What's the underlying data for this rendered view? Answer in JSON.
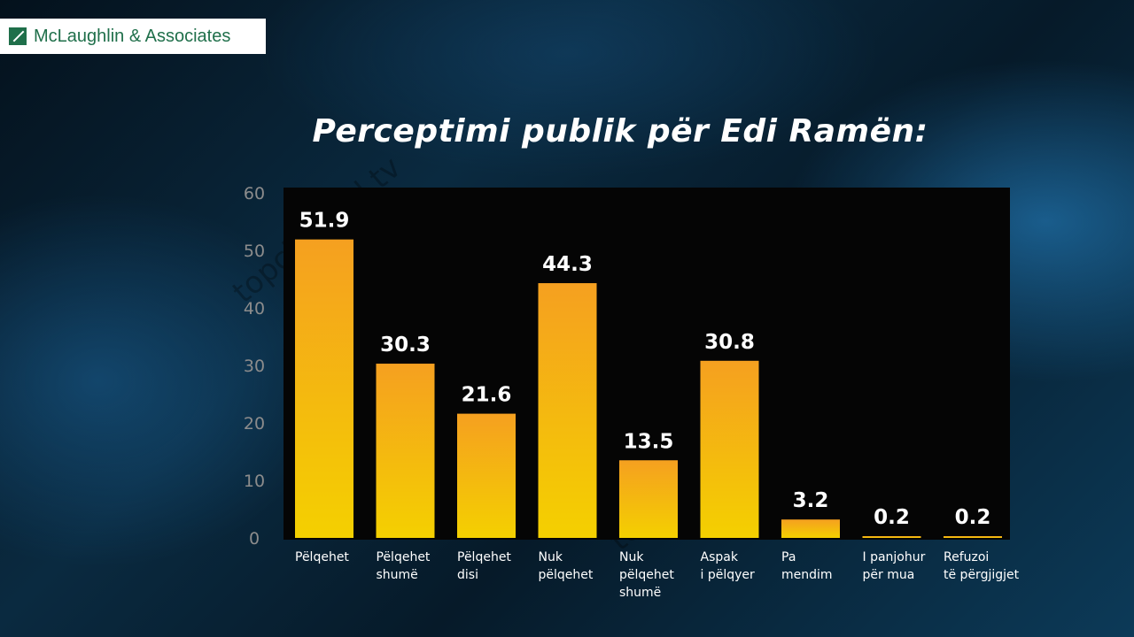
{
  "logo": {
    "text": "McLaughlin & Associates",
    "icon": "mclaughlin-logo-icon"
  },
  "watermark": "topchannel.tv",
  "chart_data": {
    "type": "bar",
    "title": "Perceptimi publik për Edi Ramën:",
    "categories": [
      [
        "Pëlqehet"
      ],
      [
        "Pëlqehet",
        "shumë"
      ],
      [
        "Pëlqehet",
        "disi"
      ],
      [
        "Nuk",
        "pëlqehet"
      ],
      [
        "Nuk",
        "pëlqehet",
        "shumë"
      ],
      [
        "Aspak",
        "i pëlqyer"
      ],
      [
        "Pa",
        "mendim"
      ],
      [
        "I panjohur",
        "për mua"
      ],
      [
        "Refuzoi",
        "të përgjigjet"
      ]
    ],
    "values": [
      51.9,
      30.3,
      21.6,
      44.3,
      13.5,
      30.8,
      3.2,
      0.2,
      0.2
    ],
    "value_labels": [
      "51.9",
      "30.3",
      "21.6",
      "44.3",
      "13.5",
      "30.8",
      "3.2",
      "0.2",
      "0.2"
    ],
    "yticks": [
      "0",
      "10",
      "20",
      "30",
      "40",
      "50",
      "60"
    ],
    "ylim": [
      0,
      60
    ],
    "colors": {
      "bar_top": "#f5a020",
      "bar_bottom": "#f4d000",
      "plot_bg": "#050505",
      "text": "#ffffff",
      "tick": "#8c8c8c"
    }
  }
}
